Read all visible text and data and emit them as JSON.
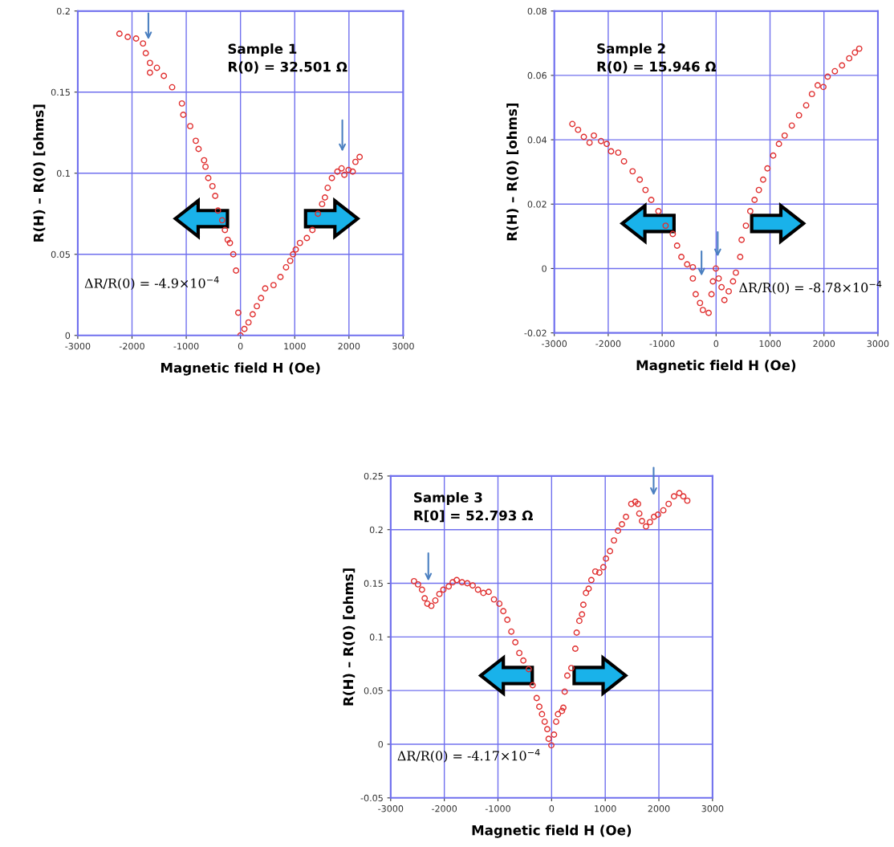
{
  "chart_data": [
    {
      "type": "scatter",
      "xlabel": "Magnetic field H (Oe)",
      "ylabel": "R(H) – R(0) [ohms]",
      "xlim": [
        -3000,
        3000
      ],
      "xticks": [
        -3000,
        -2000,
        -1000,
        0,
        1000,
        2000,
        3000
      ],
      "ylim": [
        0,
        0.2
      ],
      "yticks": [
        0,
        0.05,
        0.1,
        0.15,
        0.2
      ],
      "grid": true,
      "marker": "circle",
      "annotations": [
        "Sample 1\nR(0) = 32.501 Ω",
        "ΔR/R(0) = -4.9×10$^{−4}$"
      ],
      "series": [
        {
          "color": "#e03030",
          "x": [
            -2232,
            -2079,
            -1925,
            -1797,
            -1746,
            -1669,
            -1669,
            -1541,
            -1413,
            -1260,
            -1080,
            -1055,
            -927,
            -824,
            -773,
            -671,
            -645,
            -594,
            -517,
            -466,
            -415,
            -338,
            -287,
            -236,
            -195,
            -133,
            -82,
            -41,
            0,
            72,
            148,
            225,
            302,
            379,
            456,
            609,
            737,
            840,
            917,
            968,
            1019,
            1096,
            1224,
            1326,
            1428,
            1505,
            1557,
            1608,
            1685,
            1787,
            1864,
            1915,
            1992,
            2069,
            2120,
            2197
          ],
          "values": [
            0.186,
            0.184,
            0.183,
            0.18,
            0.174,
            0.168,
            0.162,
            0.165,
            0.16,
            0.153,
            0.143,
            0.136,
            0.129,
            0.12,
            0.115,
            0.108,
            0.104,
            0.097,
            0.092,
            0.086,
            0.077,
            0.071,
            0.065,
            0.059,
            0.057,
            0.05,
            0.04,
            0.014,
            0.0,
            0.004,
            0.008,
            0.013,
            0.018,
            0.023,
            0.029,
            0.031,
            0.036,
            0.042,
            0.046,
            0.05,
            0.053,
            0.057,
            0.06,
            0.065,
            0.075,
            0.081,
            0.085,
            0.091,
            0.097,
            0.101,
            0.103,
            0.099,
            0.102,
            0.101,
            0.107,
            0.11
          ]
        }
      ]
    },
    {
      "type": "scatter",
      "xlabel": "Magnetic field H (Oe)",
      "ylabel": "R(H) – R(0) [ohms]",
      "xlim": [
        -3000,
        3000
      ],
      "xticks": [
        -3000,
        -2000,
        -1000,
        0,
        1000,
        2000,
        3000
      ],
      "ylim": [
        -0.02,
        0.08
      ],
      "yticks": [
        -0.02,
        0,
        0.02,
        0.04,
        0.06,
        0.08
      ],
      "grid": true,
      "marker": "circle",
      "annotations": [
        "Sample 2\nR(0) = 15.946 Ω",
        "ΔR/R(0) = -8.78×10$^{−4}$"
      ],
      "series": [
        {
          "color": "#e03030",
          "x": [
            -2665,
            -2559,
            -2452,
            -2346,
            -2266,
            -2133,
            -2027,
            -1947,
            -1814,
            -1707,
            -1548,
            -1415,
            -1309,
            -1202,
            -1069,
            -936,
            -803,
            -723,
            -644,
            -537,
            -431,
            -431,
            -378,
            -298,
            -245,
            -138,
            -85,
            -59,
            -5,
            48,
            101,
            154,
            234,
            314,
            367,
            447,
            473,
            553,
            633,
            713,
            793,
            872,
            952,
            1059,
            1165,
            1271,
            1404,
            1537,
            1670,
            1777,
            1883,
            1989,
            2069,
            2202,
            2335,
            2468,
            2574,
            2654
          ],
          "values": [
            0.0449,
            0.0431,
            0.0409,
            0.0391,
            0.0413,
            0.0396,
            0.0387,
            0.0364,
            0.036,
            0.0333,
            0.0302,
            0.0276,
            0.0244,
            0.0213,
            0.0178,
            0.0133,
            0.0107,
            0.0071,
            0.0036,
            0.0013,
            0.0004,
            -0.0031,
            -0.008,
            -0.0107,
            -0.0129,
            -0.0138,
            -0.008,
            -0.004,
            0.0,
            -0.0031,
            -0.0058,
            -0.0098,
            -0.0071,
            -0.004,
            -0.0013,
            0.0036,
            0.0089,
            0.0133,
            0.0178,
            0.0213,
            0.0244,
            0.0276,
            0.0311,
            0.0351,
            0.0387,
            0.0413,
            0.0444,
            0.0476,
            0.0507,
            0.0542,
            0.0569,
            0.0564,
            0.0596,
            0.0613,
            0.0631,
            0.0653,
            0.0671,
            0.0683
          ]
        }
      ]
    },
    {
      "type": "scatter",
      "xlabel": "Magnetic field H (Oe)",
      "ylabel": "R(H) – R(0) [ohms]",
      "xlim": [
        -3000,
        3000
      ],
      "xticks": [
        -3000,
        -2000,
        -1000,
        0,
        1000,
        2000,
        3000
      ],
      "ylim": [
        -0.05,
        0.25
      ],
      "yticks": [
        -0.05,
        0,
        0.05,
        0.1,
        0.15,
        0.2,
        0.25
      ],
      "grid": true,
      "marker": "circle",
      "annotations": [
        "Sample 3\nR[0] = 52.793 Ω",
        "ΔR/R(0) = -4.17×10$^{−4}$"
      ],
      "series": [
        {
          "color": "#e03030",
          "x": [
            -2565,
            -2490,
            -2416,
            -2366,
            -2316,
            -2242,
            -2167,
            -2092,
            -2018,
            -1918,
            -1844,
            -1769,
            -1670,
            -1571,
            -1471,
            -1372,
            -1272,
            -1173,
            -1074,
            -974,
            -900,
            -825,
            -751,
            -676,
            -602,
            -527,
            -427,
            -353,
            -278,
            -229,
            -179,
            -129,
            -80,
            -55,
            -5,
            45,
            85,
            119,
            194,
            219,
            244,
            293,
            368,
            442,
            467,
            517,
            567,
            592,
            641,
            691,
            741,
            815,
            890,
            965,
            1014,
            1089,
            1163,
            1238,
            1312,
            1387,
            1486,
            1561,
            1611,
            1635,
            1685,
            1760,
            1834,
            1909,
            1983,
            2083,
            2182,
            2282,
            2381,
            2456,
            2530
          ],
          "values": [
            0.152,
            0.149,
            0.144,
            0.136,
            0.131,
            0.129,
            0.134,
            0.14,
            0.144,
            0.147,
            0.151,
            0.153,
            0.151,
            0.15,
            0.148,
            0.144,
            0.141,
            0.142,
            0.135,
            0.131,
            0.124,
            0.116,
            0.105,
            0.095,
            0.085,
            0.078,
            0.07,
            0.055,
            0.043,
            0.035,
            0.028,
            0.021,
            0.014,
            0.005,
            -0.001,
            0.009,
            0.021,
            0.028,
            0.031,
            0.034,
            0.049,
            0.064,
            0.071,
            0.089,
            0.104,
            0.115,
            0.121,
            0.13,
            0.141,
            0.145,
            0.153,
            0.161,
            0.16,
            0.165,
            0.173,
            0.18,
            0.19,
            0.199,
            0.205,
            0.212,
            0.224,
            0.226,
            0.224,
            0.215,
            0.208,
            0.203,
            0.207,
            0.212,
            0.214,
            0.218,
            0.224,
            0.231,
            0.234,
            0.231,
            0.227
          ]
        }
      ]
    }
  ]
}
